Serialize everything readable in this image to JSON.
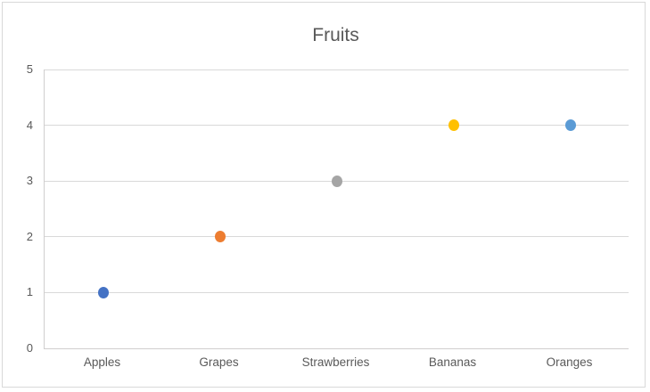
{
  "chart_data": {
    "type": "scatter",
    "title": "Fruits",
    "categories": [
      "Apples",
      "Grapes",
      "Strawberries",
      "Bananas",
      "Oranges"
    ],
    "values": [
      1,
      2,
      3,
      4,
      4
    ],
    "point_colors": [
      "#4472C4",
      "#ED7D31",
      "#A5A5A5",
      "#FFC000",
      "#5B9BD5"
    ],
    "ylim": [
      0,
      5
    ],
    "ytick_step": 1,
    "xlabel": "",
    "ylabel": "",
    "grid": true,
    "legend_position": "none",
    "gridline_color": "#d9d9d9",
    "axis_line_color": "#d0cece",
    "title_color": "#595959",
    "tick_label_color": "#595959",
    "background_color": "#ffffff",
    "border_color": "#d9d9d9"
  }
}
